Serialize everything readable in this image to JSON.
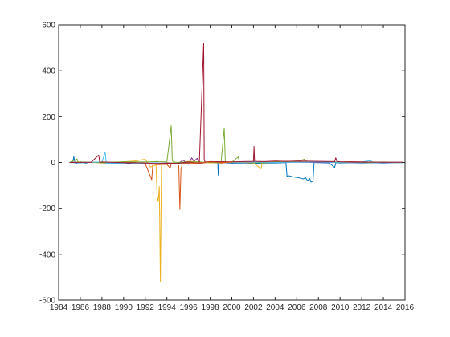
{
  "chart_data": {
    "type": "line",
    "title": "",
    "xlabel": "",
    "ylabel": "",
    "xlim": [
      1984,
      2016
    ],
    "ylim": [
      -600,
      600
    ],
    "grid": false,
    "legend": "none",
    "x_ticks": [
      "1984",
      "1986",
      "1988",
      "1990",
      "1992",
      "1994",
      "1996",
      "1998",
      "2000",
      "2002",
      "2004",
      "2006",
      "2008",
      "2010",
      "2012",
      "2014",
      "2016"
    ],
    "y_ticks": [
      "-600",
      "-400",
      "-200",
      "0",
      "200",
      "400",
      "600"
    ],
    "x_tick_values": [
      1984,
      1986,
      1988,
      1990,
      1992,
      1994,
      1996,
      1998,
      2000,
      2002,
      2004,
      2006,
      2008,
      2010,
      2012,
      2014,
      2016
    ],
    "y_tick_values": [
      -600,
      -400,
      -200,
      0,
      200,
      400,
      600
    ],
    "series": [
      {
        "color": "#0072BD",
        "x": [
          1985.3,
          1985.4,
          1985.5,
          1985.6,
          1986,
          1986.5,
          1987,
          1988,
          1989,
          1990,
          1991,
          1992,
          1993,
          1994,
          1995,
          1996,
          1997,
          1998,
          1998.7,
          1998.75,
          1998.8,
          1999,
          2000,
          2001,
          2002,
          2003,
          2004,
          2005,
          2005.1,
          2005.3,
          2005.6,
          2006,
          2006.3,
          2006.6,
          2006.8,
          2007,
          2007.2,
          2007.3,
          2007.5,
          2007.6,
          2008,
          2009,
          2009.5,
          2009.6,
          2009.7,
          2010,
          2011,
          2012,
          2013,
          2014,
          2015,
          2015.8
        ],
        "y": [
          0,
          25,
          0,
          -5,
          3,
          -3,
          2,
          -2,
          -3,
          -5,
          -4,
          -3,
          -2,
          -4,
          -3,
          -2,
          -1,
          0,
          -2,
          -55,
          -2,
          0,
          -3,
          -2,
          -4,
          -3,
          -2,
          -1,
          -60,
          -58,
          -62,
          -65,
          -68,
          -72,
          -66,
          -80,
          -70,
          -85,
          -82,
          0,
          -1,
          -2,
          -22,
          -2,
          -1,
          -2,
          -1,
          -2,
          -1,
          -2,
          -1,
          -1
        ]
      },
      {
        "color": "#D95319",
        "x": [
          1985,
          1986,
          1987,
          1988,
          1989,
          1990,
          1991,
          1992,
          1992.6,
          1992.7,
          1992.8,
          1993,
          1994,
          1994.3,
          1994.4,
          1995,
          1996,
          1997,
          1998,
          1999,
          2000,
          2001,
          2002,
          2002.5,
          2003,
          2004,
          2005,
          2006,
          2007,
          2008,
          2009,
          2010,
          2011,
          2012,
          2013,
          2014,
          2015,
          2015.8
        ],
        "y": [
          0,
          1,
          0,
          2,
          0,
          -1,
          0,
          -5,
          -75,
          -8,
          -6,
          -10,
          -8,
          -25,
          -6,
          -4,
          -2,
          -5,
          2,
          -3,
          3,
          2,
          4,
          2,
          3,
          5,
          4,
          6,
          2,
          4,
          3,
          2,
          3,
          2,
          1,
          2,
          1,
          1
        ]
      },
      {
        "color": "#EDB120",
        "x": [
          1985,
          1986,
          1988,
          1990,
          1991,
          1992,
          1992.5,
          1993,
          1993.1,
          1993.2,
          1993.3,
          1993.4,
          1993.5,
          1993.7,
          1994,
          1995,
          1996,
          1997,
          1998,
          1999,
          2000,
          2001,
          2002,
          2002.7,
          2002.8,
          2003,
          2004,
          2005,
          2006,
          2007,
          2008,
          2009,
          2010,
          2011,
          2012,
          2013,
          2014,
          2015,
          2015.8
        ],
        "y": [
          0,
          2,
          -2,
          3,
          6,
          14,
          -20,
          -10,
          -150,
          -170,
          -105,
          -520,
          -10,
          -5,
          0,
          -3,
          5,
          3,
          -2,
          2,
          1,
          0,
          -2,
          -28,
          0,
          -1,
          0,
          1,
          2,
          3,
          0,
          2,
          1,
          0,
          1,
          2,
          1,
          0,
          0
        ]
      },
      {
        "color": "#7E2F8E",
        "x": [
          1985,
          1988,
          1990,
          1992,
          1993,
          1994,
          1995,
          1995.5,
          1996,
          1996.3,
          1996.5,
          1996.8,
          1997,
          1998,
          2000,
          2002,
          2004,
          2006,
          2008,
          2010,
          2012,
          2014,
          2015.8
        ],
        "y": [
          0,
          1,
          -2,
          -3,
          -4,
          -2,
          -5,
          10,
          -8,
          20,
          5,
          18,
          -2,
          3,
          2,
          1,
          0,
          1,
          0,
          1,
          0,
          0,
          0
        ]
      },
      {
        "color": "#77AC30",
        "x": [
          1985,
          1985.7,
          1985.8,
          1986,
          1988,
          1990,
          1992,
          1993,
          1994,
          1994.4,
          1994.5,
          1994.6,
          1995,
          1996,
          1997,
          1998,
          1999,
          1999.3,
          1999.4,
          1999.5,
          2000,
          2000.6,
          2000.7,
          2001,
          2002,
          2003,
          2004,
          2005,
          2006,
          2006.7,
          2007,
          2008,
          2009,
          2010,
          2011,
          2012,
          2013,
          2014,
          2015,
          2015.8
        ],
        "y": [
          0,
          15,
          0,
          2,
          -1,
          3,
          2,
          4,
          2,
          160,
          8,
          2,
          0,
          3,
          2,
          0,
          -2,
          150,
          2,
          0,
          1,
          25,
          0,
          3,
          1,
          -2,
          2,
          5,
          3,
          14,
          1,
          4,
          2,
          0,
          2,
          1,
          0,
          1,
          0,
          0
        ]
      },
      {
        "color": "#4DBEEE",
        "x": [
          1985,
          1986,
          1987,
          1988,
          1988.3,
          1988.4,
          1989,
          1990,
          1990.5,
          1991,
          1992,
          1993,
          1994,
          1995,
          1996,
          1997,
          1998,
          2000,
          2002,
          2004,
          2006,
          2008,
          2010,
          2012,
          2012.8,
          2013,
          2014,
          2015,
          2015.8
        ],
        "y": [
          0,
          -2,
          1,
          2,
          45,
          -3,
          -2,
          -4,
          -8,
          -3,
          -6,
          -4,
          -2,
          -3,
          -2,
          0,
          2,
          1,
          2,
          0,
          1,
          2,
          1,
          2,
          8,
          1,
          0,
          1,
          0
        ]
      },
      {
        "color": "#A2142F",
        "x": [
          1985,
          1987,
          1987.7,
          1987.8,
          1988,
          1990,
          1992,
          1993,
          1994,
          1995,
          1996,
          1996.8,
          1997,
          1997.4,
          1997.45,
          1997.5,
          1997.6,
          1998,
          1999,
          2000,
          2001,
          2002,
          2002.05,
          2002.1,
          2003,
          2004,
          2005,
          2006,
          2008,
          2009.5,
          2009.6,
          2009.7,
          2010,
          2012,
          2014,
          2015.8
        ],
        "y": [
          0,
          1,
          32,
          0,
          2,
          -1,
          -2,
          -5,
          -3,
          -4,
          2,
          -2,
          0,
          520,
          15,
          5,
          2,
          4,
          3,
          2,
          4,
          5,
          70,
          5,
          4,
          6,
          5,
          6,
          5,
          4,
          20,
          5,
          3,
          2,
          1,
          1
        ]
      },
      {
        "color": "#D95319",
        "x": [
          1995,
          1995.1,
          1995.2,
          1995.3,
          1995.4,
          1995.5,
          1996,
          1997,
          1998,
          1999,
          2000
        ],
        "y": [
          -10,
          -15,
          -205,
          -30,
          -10,
          -5,
          -2,
          -1,
          2,
          0,
          1
        ]
      }
    ]
  }
}
